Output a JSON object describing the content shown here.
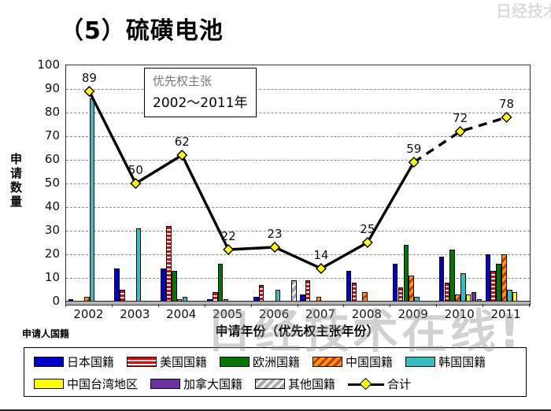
{
  "watermark": "日经技术在线!",
  "axis": {
    "y_label": "申请数量",
    "x_label": "申请年份（优先权主张年份）",
    "applicant_label": "申请人国籍"
  },
  "annotation": {
    "line1": "优先权主张",
    "line2": "2002～2011年"
  },
  "chart_data": {
    "type": "bar+line",
    "title": "（5）硫磺电池",
    "categories": [
      "2002",
      "2003",
      "2004",
      "2005",
      "2006",
      "2007",
      "2008",
      "2009",
      "2010",
      "2011"
    ],
    "ylim": [
      0,
      100
    ],
    "y_step": 10,
    "grid": "horizontal-dashed",
    "legend_position": "bottom",
    "series": [
      {
        "name": "日本国籍",
        "color": "#0000CC",
        "pattern": "solid",
        "values": [
          1,
          14,
          14,
          1,
          2,
          3,
          13,
          16,
          19,
          20
        ]
      },
      {
        "name": "美国国籍",
        "color": "#EE0000",
        "stripe": "#FFFFFF",
        "pattern": "h-stripes",
        "values": [
          0,
          5,
          32,
          4,
          7,
          9,
          8,
          6,
          8,
          13
        ]
      },
      {
        "name": "欧洲国籍",
        "color": "#007700",
        "pattern": "solid",
        "values": [
          0,
          0,
          13,
          16,
          0,
          0,
          0,
          24,
          22,
          16
        ]
      },
      {
        "name": "中国国籍",
        "color": "#FF9900",
        "stripe": "#CC3300",
        "pattern": "d-stripes",
        "values": [
          2,
          0,
          1,
          1,
          0,
          2,
          4,
          11,
          3,
          20
        ]
      },
      {
        "name": "韩国国籍",
        "color": "#33BFBF",
        "pattern": "solid",
        "values": [
          86,
          31,
          2,
          0,
          5,
          0,
          0,
          2,
          12,
          5
        ]
      },
      {
        "name": "中国台湾地区",
        "color": "#FFFF00",
        "pattern": "solid",
        "values": [
          0,
          0,
          0,
          0,
          0,
          0,
          0,
          0,
          3,
          4
        ]
      },
      {
        "name": "加拿大国籍",
        "color": "#7030A0",
        "pattern": "solid",
        "values": [
          0,
          0,
          0,
          0,
          0,
          0,
          0,
          0,
          4,
          0
        ]
      },
      {
        "name": "其他国籍",
        "color": "#AAAAAA",
        "stripe": "#F2F2F2",
        "pattern": "d-stripes",
        "values": [
          0,
          0,
          0,
          0,
          9,
          0,
          0,
          0,
          1,
          0
        ]
      }
    ],
    "line": {
      "name": "合计",
      "color": "#000000",
      "marker": "diamond",
      "marker_color": "#FFFF00",
      "values": [
        89,
        50,
        62,
        22,
        23,
        14,
        25,
        59,
        72,
        78
      ],
      "dashed_from_index": 7
    }
  }
}
